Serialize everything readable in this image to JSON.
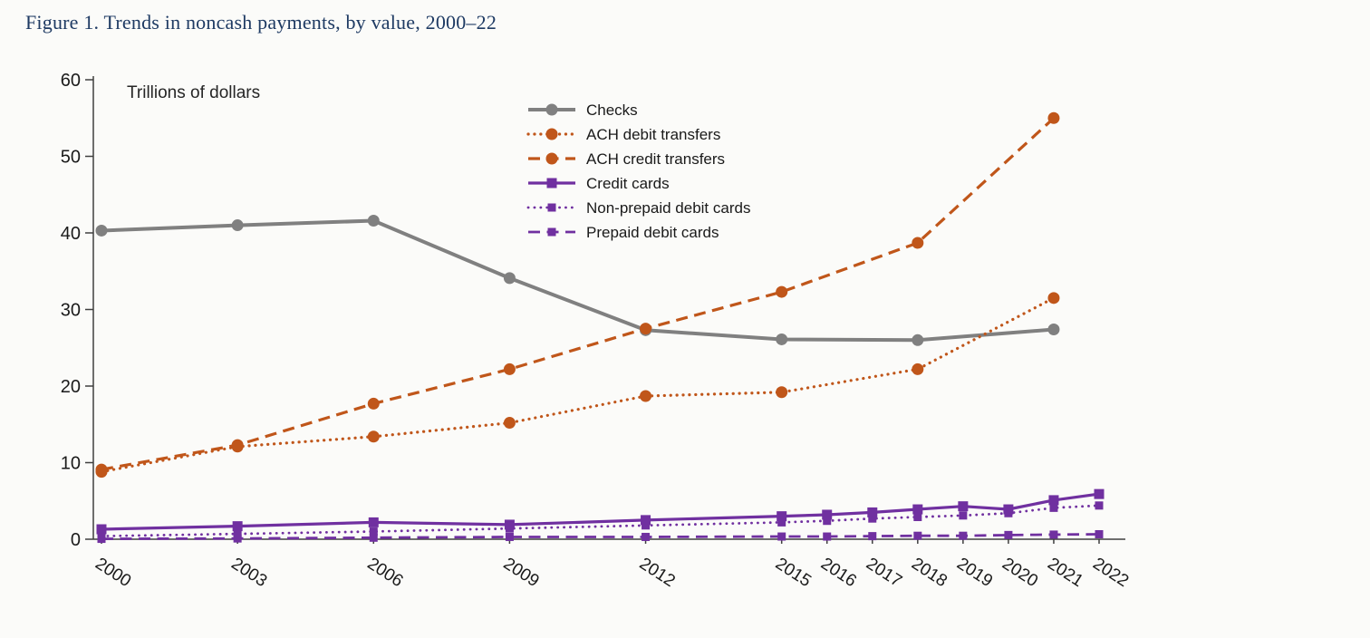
{
  "figure": {
    "title": "Figure 1. Trends in noncash payments, by value, 2000–22",
    "units_label": "Trillions of dollars"
  },
  "chart_data": {
    "type": "line",
    "title": "Figure 1. Trends in noncash payments, by value, 2000–22",
    "units_label": "Trillions of dollars",
    "xlabel": "",
    "ylabel": "Trillions of dollars",
    "grid": false,
    "legend_position": "top-center-inside",
    "x_axis": {
      "range": [
        2000,
        2022
      ],
      "ticks": [
        2000,
        2003,
        2006,
        2009,
        2012,
        2015,
        2016,
        2017,
        2018,
        2019,
        2020,
        2021,
        2022
      ]
    },
    "y_axis": {
      "range": [
        0,
        60
      ],
      "ticks": [
        0,
        10,
        20,
        30,
        40,
        50,
        60
      ]
    },
    "series": [
      {
        "name": "Checks",
        "color": "#808080",
        "style": "solid",
        "marker": "circle",
        "x": [
          2000,
          2003,
          2006,
          2009,
          2012,
          2015,
          2018,
          2021
        ],
        "y": [
          40.3,
          41.0,
          41.6,
          34.1,
          27.3,
          26.1,
          26.0,
          27.4
        ]
      },
      {
        "name": "ACH debit transfers",
        "color": "#c0561a",
        "style": "dotted",
        "marker": "circle",
        "x": [
          2000,
          2003,
          2006,
          2009,
          2012,
          2015,
          2018,
          2021
        ],
        "y": [
          8.8,
          12.1,
          13.4,
          15.2,
          18.7,
          19.2,
          22.2,
          31.5
        ]
      },
      {
        "name": "ACH credit transfers",
        "color": "#c0561a",
        "style": "dashed",
        "marker": "circle",
        "x": [
          2000,
          2003,
          2006,
          2009,
          2012,
          2015,
          2018,
          2021
        ],
        "y": [
          9.1,
          12.3,
          17.7,
          22.2,
          27.5,
          32.3,
          38.7,
          55.0
        ]
      },
      {
        "name": "Credit cards",
        "color": "#7030a0",
        "style": "solid",
        "marker": "square",
        "x": [
          2000,
          2003,
          2006,
          2009,
          2012,
          2015,
          2016,
          2017,
          2018,
          2019,
          2020,
          2021,
          2022
        ],
        "y": [
          1.3,
          1.7,
          2.2,
          1.9,
          2.5,
          3.0,
          3.2,
          3.5,
          3.9,
          4.3,
          3.9,
          5.1,
          5.9
        ]
      },
      {
        "name": "Non-prepaid debit cards",
        "color": "#7030a0",
        "style": "dotted",
        "marker": "square",
        "x": [
          2000,
          2003,
          2006,
          2009,
          2012,
          2015,
          2016,
          2017,
          2018,
          2019,
          2020,
          2021,
          2022
        ],
        "y": [
          0.4,
          0.7,
          1.0,
          1.4,
          1.8,
          2.2,
          2.4,
          2.7,
          2.9,
          3.1,
          3.4,
          4.1,
          4.4
        ]
      },
      {
        "name": "Prepaid debit cards",
        "color": "#7030a0",
        "style": "dashed",
        "marker": "square",
        "x": [
          2000,
          2003,
          2006,
          2009,
          2012,
          2015,
          2016,
          2017,
          2018,
          2019,
          2020,
          2021,
          2022
        ],
        "y": [
          0.05,
          0.1,
          0.2,
          0.3,
          0.3,
          0.35,
          0.35,
          0.4,
          0.45,
          0.45,
          0.55,
          0.6,
          0.65
        ]
      }
    ]
  },
  "colors": {
    "title": "#1e3a63",
    "axis": "#3f3f3f",
    "checks": "#808080",
    "ach": "#c0561a",
    "cards": "#7030a0"
  }
}
